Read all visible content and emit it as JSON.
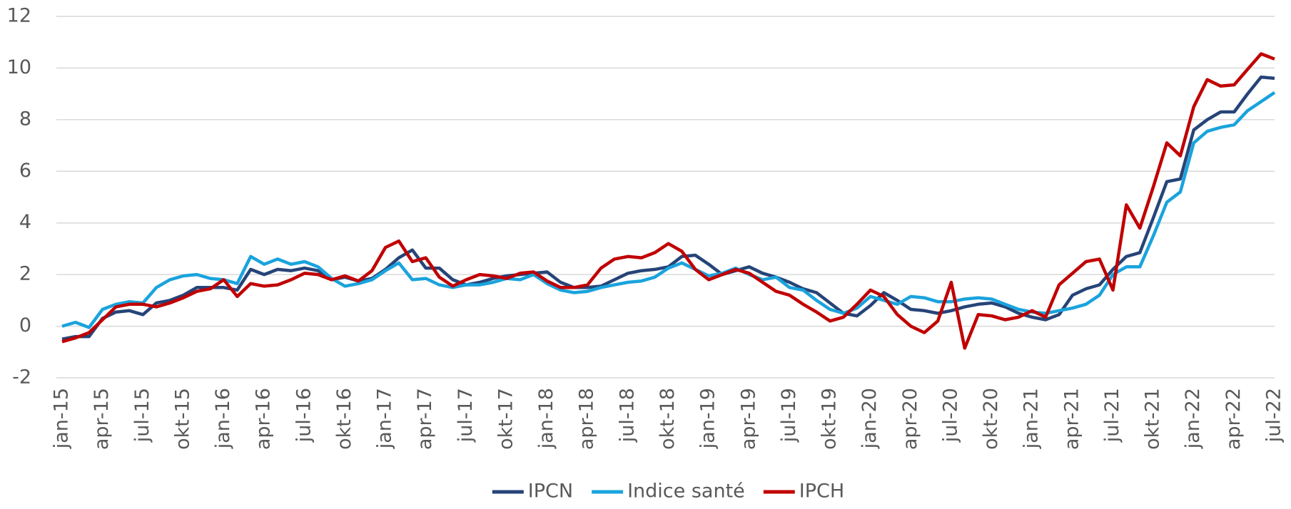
{
  "chart_data": {
    "type": "line",
    "categories": [
      "jan-15",
      null,
      null,
      "apr-15",
      null,
      null,
      "jul-15",
      null,
      null,
      "okt-15",
      null,
      null,
      "jan-16",
      null,
      null,
      "apr-16",
      null,
      null,
      "jul-16",
      null,
      null,
      "okt-16",
      null,
      null,
      "jan-17",
      null,
      null,
      "apr-17",
      null,
      null,
      "jul-17",
      null,
      null,
      "okt-17",
      null,
      null,
      "jan-18",
      null,
      null,
      "apr-18",
      null,
      null,
      "jul-18",
      null,
      null,
      "okt-18",
      null,
      null,
      "jan-19",
      null,
      null,
      "apr-19",
      null,
      null,
      "jul-19",
      null,
      null,
      "okt-19",
      null,
      null,
      "jan-20",
      null,
      null,
      "apr-20",
      null,
      null,
      "jul-20",
      null,
      null,
      "okt-20",
      null,
      null,
      "jan-21",
      null,
      null,
      "apr-21",
      null,
      null,
      "jul-21",
      null,
      null,
      "okt-21",
      null,
      null,
      "jan-22",
      null,
      null,
      "apr-22",
      null,
      null,
      "jul-22"
    ],
    "series": [
      {
        "name": "IPCN",
        "color": "#264478",
        "values": [
          -0.5,
          -0.4,
          -0.4,
          0.3,
          0.55,
          0.6,
          0.45,
          0.9,
          1.0,
          1.2,
          1.5,
          1.5,
          1.5,
          1.4,
          2.2,
          2.0,
          2.2,
          2.15,
          2.25,
          2.15,
          1.8,
          1.9,
          1.75,
          1.85,
          2.2,
          2.65,
          2.95,
          2.25,
          2.25,
          1.8,
          1.6,
          1.7,
          1.85,
          1.95,
          2.0,
          2.05,
          2.1,
          1.7,
          1.5,
          1.5,
          1.55,
          1.8,
          2.05,
          2.15,
          2.2,
          2.3,
          2.7,
          2.75,
          2.4,
          2.0,
          2.15,
          2.3,
          2.05,
          1.9,
          1.7,
          1.45,
          1.3,
          0.9,
          0.5,
          0.4,
          0.8,
          1.3,
          1.0,
          0.65,
          0.6,
          0.5,
          0.6,
          0.75,
          0.85,
          0.9,
          0.75,
          0.5,
          0.35,
          0.25,
          0.45,
          1.2,
          1.45,
          1.6,
          2.2,
          2.7,
          2.85,
          4.2,
          5.6,
          5.7,
          7.6,
          8.0,
          8.3,
          8.3,
          9.0,
          9.65,
          9.6
        ]
      },
      {
        "name": "Indice santé",
        "color": "#1aa3dd",
        "values": [
          0,
          0.15,
          -0.05,
          0.65,
          0.85,
          0.95,
          0.9,
          1.5,
          1.8,
          1.95,
          2.0,
          1.85,
          1.8,
          1.65,
          2.7,
          2.4,
          2.6,
          2.4,
          2.5,
          2.3,
          1.85,
          1.55,
          1.65,
          1.8,
          2.15,
          2.45,
          1.8,
          1.85,
          1.6,
          1.5,
          1.6,
          1.6,
          1.7,
          1.85,
          1.8,
          2.0,
          1.65,
          1.4,
          1.3,
          1.35,
          1.5,
          1.6,
          1.7,
          1.75,
          1.9,
          2.25,
          2.45,
          2.2,
          1.95,
          2.05,
          2.25,
          2.0,
          1.8,
          1.9,
          1.5,
          1.4,
          1.0,
          0.65,
          0.5,
          0.7,
          1.15,
          1.0,
          0.85,
          1.15,
          1.1,
          0.95,
          0.95,
          1.05,
          1.1,
          1.05,
          0.85,
          0.65,
          0.55,
          0.5,
          0.6,
          0.7,
          0.85,
          1.2,
          2.0,
          2.3,
          2.3,
          3.5,
          4.8,
          5.2,
          7.1,
          7.55,
          7.7,
          7.8,
          8.35,
          8.7,
          9.05
        ]
      },
      {
        "name": "IPCH",
        "color": "#c00000",
        "values": [
          -0.6,
          -0.45,
          -0.25,
          0.25,
          0.75,
          0.85,
          0.85,
          0.75,
          0.9,
          1.1,
          1.35,
          1.45,
          1.8,
          1.15,
          1.65,
          1.55,
          1.6,
          1.8,
          2.05,
          2.0,
          1.8,
          1.95,
          1.75,
          2.15,
          3.05,
          3.3,
          2.5,
          2.65,
          1.9,
          1.55,
          1.8,
          2.0,
          1.95,
          1.85,
          2.05,
          2.1,
          1.75,
          1.5,
          1.5,
          1.6,
          2.25,
          2.6,
          2.7,
          2.65,
          2.85,
          3.2,
          2.9,
          2.2,
          1.8,
          2.0,
          2.2,
          2.05,
          1.7,
          1.35,
          1.2,
          0.85,
          0.55,
          0.2,
          0.35,
          0.85,
          1.4,
          1.15,
          0.45,
          0.0,
          -0.25,
          0.2,
          1.7,
          -0.85,
          0.45,
          0.4,
          0.25,
          0.35,
          0.6,
          0.35,
          1.6,
          2.05,
          2.5,
          2.6,
          1.4,
          4.7,
          3.8,
          5.4,
          7.1,
          6.6,
          8.5,
          9.55,
          9.3,
          9.35,
          9.95,
          10.55,
          10.35
        ]
      }
    ],
    "ylim": [
      -2,
      12
    ],
    "yticks": [
      -2,
      0,
      2,
      4,
      6,
      8,
      10,
      12
    ],
    "grid": true,
    "legend": "bottom"
  }
}
